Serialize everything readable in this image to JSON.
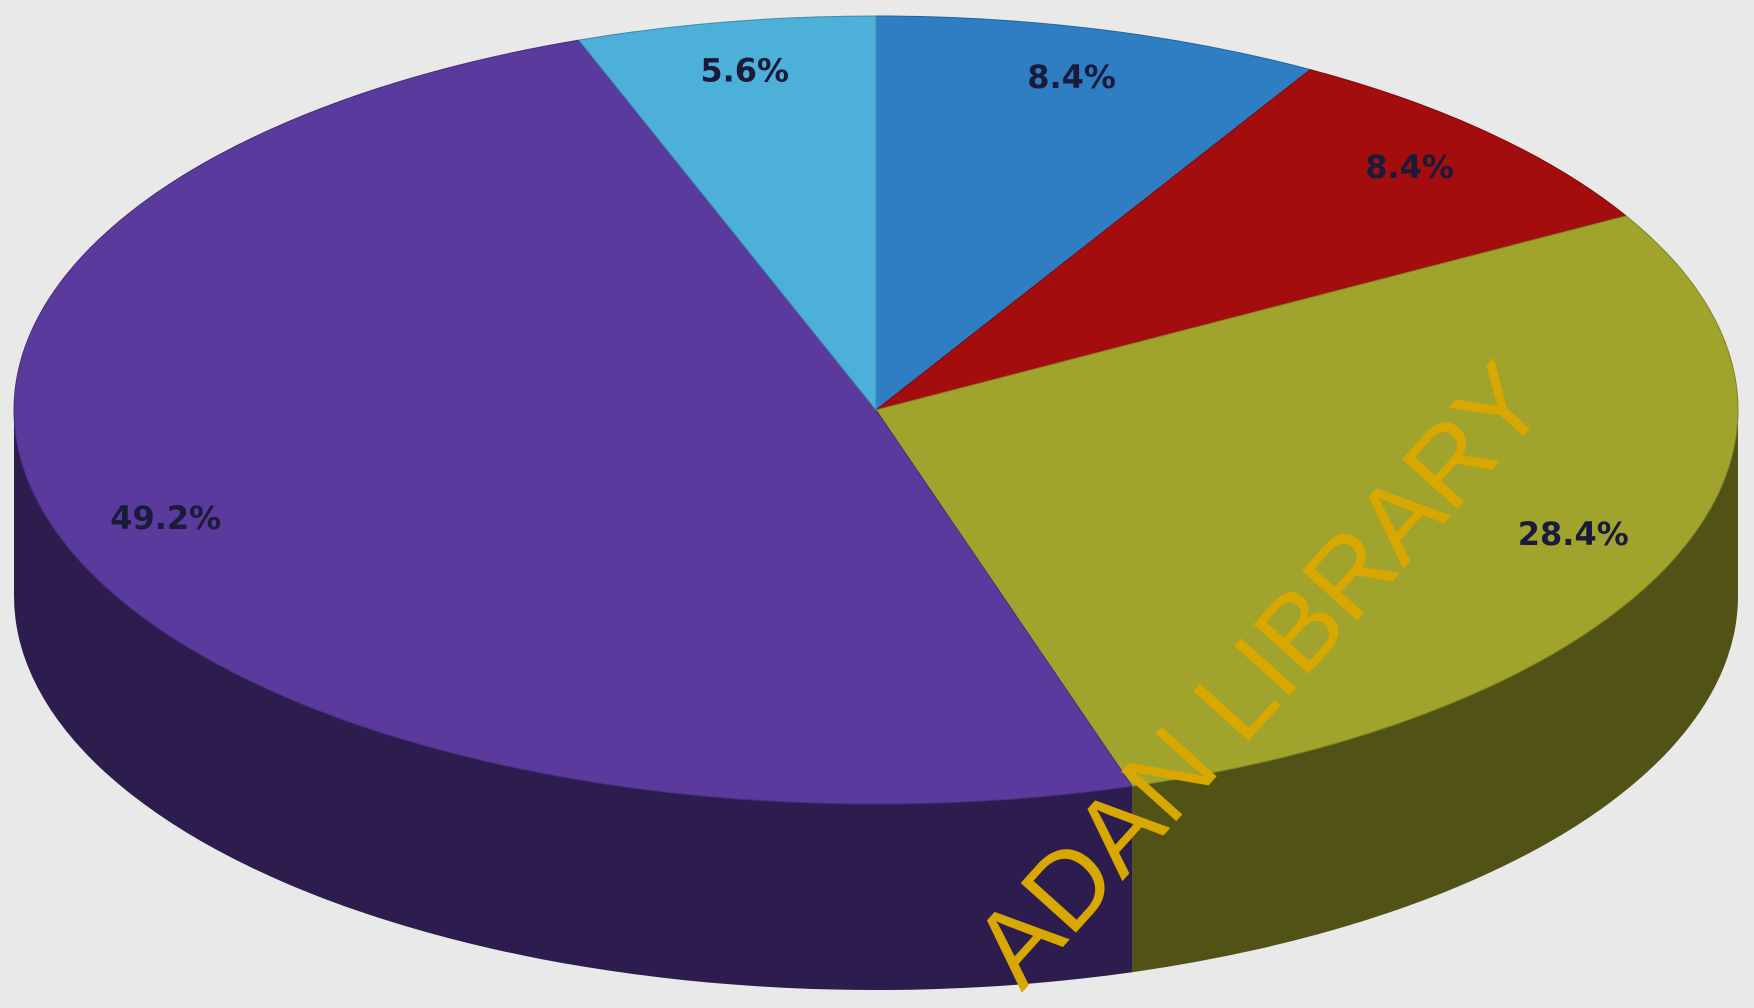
{
  "chart_data": {
    "type": "pie3d",
    "values": [
      8.4,
      8.4,
      28.4,
      49.2,
      5.6
    ],
    "value_labels": [
      "8.4%",
      "8.4%",
      "28.4%",
      "49.2%",
      "5.6%"
    ],
    "colors": [
      "#2f7dc2",
      "#a30d0d",
      "#a0a32c",
      "#5a3a9c",
      "#4db0d8"
    ]
  },
  "watermark": "ADAN LIBRARY"
}
